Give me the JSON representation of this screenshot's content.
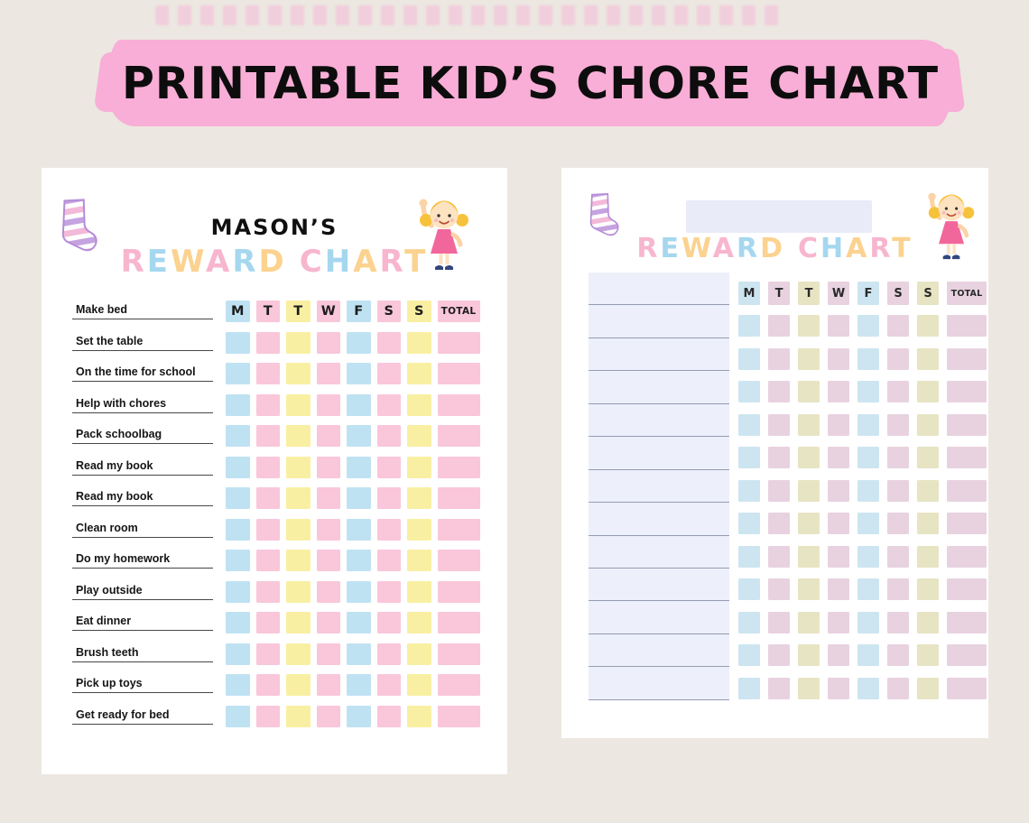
{
  "banner": {
    "title": "PRINTABLE KID’S CHORE CHART"
  },
  "palette": {
    "page_bg": "#ece7e1",
    "banner_pink": "#f8aed6",
    "title_letters": {
      "pink": "#f7b6ce",
      "blue": "#a5d7ef",
      "orange": "#fbd28f"
    },
    "left": {
      "blue": "#bfe2f2",
      "pink": "#f9c6da",
      "yellow": "#f8efa2"
    },
    "right": {
      "blue": "#cde5f0",
      "pink": "#e8d2e0",
      "yellow": "#e7e4c4"
    }
  },
  "left_chart": {
    "name": "MASON’S",
    "title": "REWARD CHART",
    "title_letter_colors": [
      "pink",
      "blue",
      "orange",
      "pink",
      "blue",
      "orange",
      "pink",
      "blue",
      "orange",
      "pink",
      "orange"
    ],
    "day_headers": [
      "M",
      "T",
      "T",
      "W",
      "F",
      "S",
      "S"
    ],
    "total_label": "TOTAL",
    "column_colors": [
      "blue",
      "pink",
      "yellow",
      "pink",
      "blue",
      "pink",
      "yellow"
    ],
    "total_color": "pink",
    "chores": [
      "Make bed",
      "Set the table",
      "On the time for school",
      "Help with chores",
      "Pack schoolbag",
      "Read my book",
      "Read my book",
      "Clean room",
      "Do my homework",
      "Play outside",
      "Eat dinner",
      "Brush teeth",
      "Pick up toys",
      "Get ready for bed"
    ]
  },
  "right_chart": {
    "title": "REWARD CHART",
    "title_letter_colors": [
      "pink",
      "blue",
      "orange",
      "pink",
      "blue",
      "orange",
      "pink",
      "blue",
      "orange",
      "pink",
      "orange"
    ],
    "day_headers": [
      "M",
      "T",
      "T",
      "W",
      "F",
      "S",
      "S"
    ],
    "total_label": "TOTAL",
    "column_colors": [
      "blue",
      "pink",
      "yellow",
      "pink",
      "blue",
      "pink",
      "yellow"
    ],
    "total_color": "pink",
    "blank_lines": 13,
    "data_rows": 12
  }
}
